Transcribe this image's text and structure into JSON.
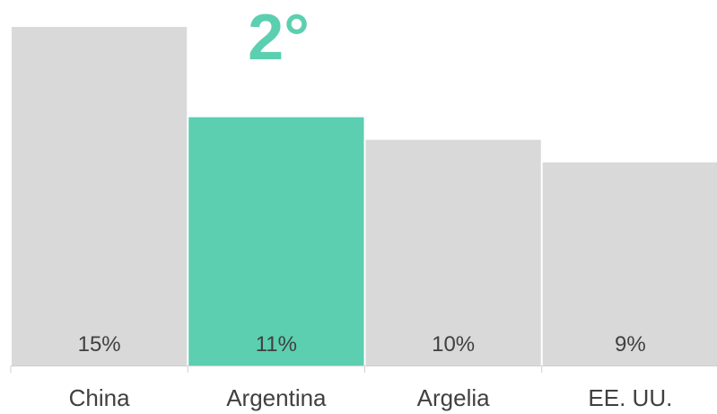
{
  "chart_data": {
    "type": "bar",
    "categories": [
      "China",
      "Argentina",
      "Argelia",
      "EE. UU."
    ],
    "values": [
      15,
      11,
      10,
      9
    ],
    "value_labels": [
      "15%",
      "11%",
      "10%",
      "9%"
    ],
    "highlight_index": 1,
    "rank_label": "2°",
    "ylim": [
      0,
      15
    ],
    "grid": false,
    "legend": "none",
    "colors": {
      "bar": "#d9d9d9",
      "highlight": "#5ccfb0",
      "text": "#404040",
      "axis": "#d0d0d0"
    }
  }
}
